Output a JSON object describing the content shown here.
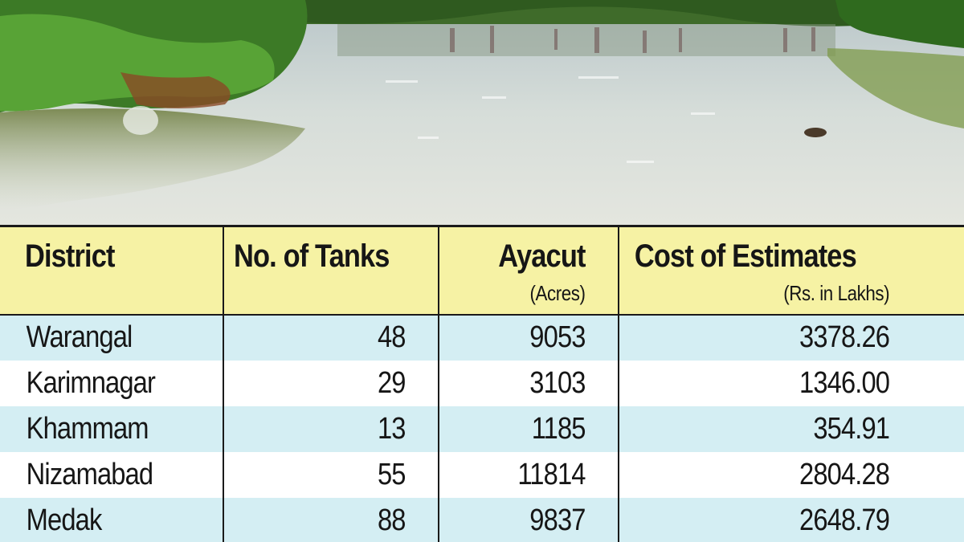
{
  "photo": {
    "description_icon": "lake-photo"
  },
  "table": {
    "headers": {
      "district": "District",
      "tanks": "No. of Tanks",
      "ayacut": "Ayacut",
      "ayacut_unit": "(Acres)",
      "cost": "Cost of Estimates",
      "cost_unit": "(Rs. in Lakhs)"
    },
    "rows": [
      {
        "district": "Warangal",
        "tanks": "48",
        "ayacut": "9053",
        "cost": "3378.26"
      },
      {
        "district": "Karimnagar",
        "tanks": "29",
        "ayacut": "3103",
        "cost": "1346.00"
      },
      {
        "district": "Khammam",
        "tanks": "13",
        "ayacut": "1185",
        "cost": "354.91"
      },
      {
        "district": "Nizamabad",
        "tanks": "55",
        "ayacut": "11814",
        "cost": "2804.28"
      },
      {
        "district": "Medak",
        "tanks": "88",
        "ayacut": "9837",
        "cost": "2648.79"
      }
    ],
    "colors": {
      "header_bg": "#f6f2a4",
      "band_bg": "#d4eef3",
      "plain_bg": "#ffffff"
    }
  }
}
